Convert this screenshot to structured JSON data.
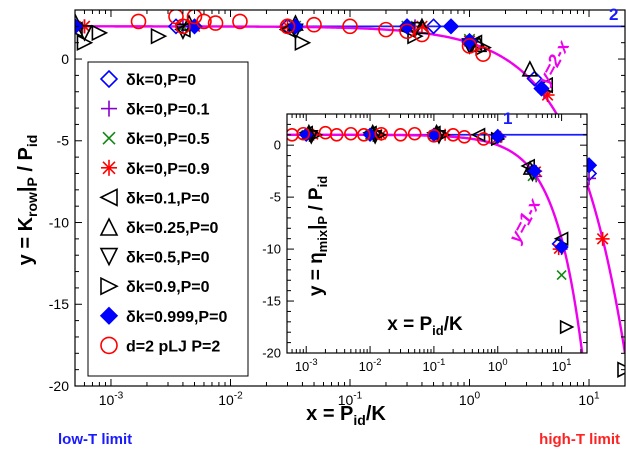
{
  "chart_data": [
    {
      "type": "scatter",
      "panel": "main",
      "xscale": "log",
      "xlim": [
        0.0005,
        20
      ],
      "ylim": [
        -20,
        3
      ],
      "grid": false,
      "legend_placement": "left",
      "xlabel": {
        "base": "x = P",
        "sub": "id",
        "tail": "/K"
      },
      "ylabel": {
        "base": "y = K",
        "sub1": "row",
        "mid": "|",
        "sub2": "P",
        "tail": " / P",
        "sub3": "id"
      },
      "xticks": [
        {
          "value": 0.001,
          "base": "10",
          "exp": "-3"
        },
        {
          "value": 0.01,
          "base": "10",
          "exp": "-2"
        },
        {
          "value": 0.1,
          "base": "10",
          "exp": "-1"
        },
        {
          "value": 1,
          "base": "10",
          "exp": "0"
        },
        {
          "value": 10,
          "base": "10",
          "exp": "1"
        }
      ],
      "yticks": [
        {
          "value": 0,
          "label": "0"
        },
        {
          "value": -5,
          "label": "-5"
        },
        {
          "value": -10,
          "label": "-10"
        },
        {
          "value": -15,
          "label": "-15"
        },
        {
          "value": -20,
          "label": "-20"
        }
      ],
      "reference_lines": [
        {
          "label": "2",
          "color": "#1a1aff",
          "kind": "const",
          "y": 2
        },
        {
          "label": "y=2-x",
          "color": "#ee00ee",
          "kind": "two_minus_x"
        }
      ],
      "corner_notes": [
        {
          "text": "low-T limit",
          "color": "#1a1aff",
          "side": "left"
        },
        {
          "text": "high-T limit",
          "color": "#ff2222",
          "side": "right"
        }
      ],
      "series": [
        {
          "name": "δk=0,P=0",
          "marker": "diamond-open",
          "color": "#0000ff",
          "points": [
            [
              0.0005,
              2
            ],
            [
              0.0035,
              2
            ],
            [
              0.03,
              2
            ],
            [
              0.3,
              2
            ],
            [
              0.5,
              2
            ],
            [
              1.0,
              1.0
            ],
            [
              3.5,
              -1.2
            ],
            [
              10,
              -7.0
            ]
          ]
        },
        {
          "name": "δk=0,P=0.1",
          "marker": "plus",
          "color": "#8800cc",
          "points": [
            [
              0.0006,
              2
            ],
            [
              0.004,
              2
            ],
            [
              0.035,
              2
            ],
            [
              0.35,
              2
            ],
            [
              1.0,
              1.0
            ],
            [
              4.2,
              -2.0
            ],
            [
              10,
              -7.3
            ]
          ]
        },
        {
          "name": "δk=0,P=0.5",
          "marker": "x",
          "color": "#118811",
          "points": [
            [
              0.0006,
              2
            ],
            [
              0.004,
              2
            ],
            [
              0.035,
              2
            ],
            [
              0.3,
              2
            ],
            [
              1.0,
              1.2
            ]
          ]
        },
        {
          "name": "δk=0,P=0.9",
          "marker": "asterisk",
          "color": "#ff0000",
          "points": [
            [
              0.0006,
              2
            ],
            [
              0.005,
              2
            ],
            [
              0.03,
              2
            ],
            [
              0.4,
              2
            ],
            [
              1.0,
              1.1
            ],
            [
              4.5,
              -2.2
            ],
            [
              13,
              -11.0
            ]
          ]
        },
        {
          "name": "δk=0.1,P=0",
          "marker": "tri-left",
          "color": "#000000",
          "points": [
            [
              0.0005,
              1.8
            ],
            [
              0.004,
              1.8
            ],
            [
              0.03,
              1.8
            ],
            [
              0.3,
              1.8
            ],
            [
              1.1,
              1.0
            ],
            [
              4.3,
              -1.6
            ]
          ]
        },
        {
          "name": "δk=0.25,P=0",
          "marker": "tri-up",
          "color": "#000000",
          "points": [
            [
              0.0005,
              2.3
            ],
            [
              0.0045,
              2.2
            ],
            [
              0.035,
              2.2
            ],
            [
              0.4,
              2.0
            ],
            [
              1.2,
              0.9
            ],
            [
              3.2,
              -0.6
            ]
          ]
        },
        {
          "name": "δk=0.5,P=0",
          "marker": "tri-down",
          "color": "#000000",
          "points": [
            [
              0.0006,
              1.6
            ],
            [
              0.004,
              1.7
            ],
            [
              0.035,
              1.7
            ],
            [
              0.35,
              1.8
            ],
            [
              1.0,
              0.8
            ]
          ]
        },
        {
          "name": "δk=0.9,P=0",
          "marker": "tri-right",
          "color": "#000000",
          "points": [
            [
              0.0006,
              1.0
            ],
            [
              0.0008,
              1.6
            ],
            [
              0.0025,
              1.4
            ],
            [
              0.04,
              1.0
            ],
            [
              0.35,
              1.4
            ],
            [
              1.3,
              0.7
            ],
            [
              6.5,
              -17.0
            ],
            [
              20,
              -19.0
            ]
          ]
        },
        {
          "name": "δk=0.999,P=0",
          "marker": "diamond-filled",
          "color": "#0000ff",
          "points": [
            [
              0.0005,
              2
            ],
            [
              0.005,
              2
            ],
            [
              0.035,
              2
            ],
            [
              0.3,
              2
            ],
            [
              0.7,
              2
            ],
            [
              1.0,
              1.1
            ],
            [
              4.0,
              -1.8
            ],
            [
              10,
              -6.5
            ]
          ]
        },
        {
          "name": "d=2 pLJ P=2",
          "marker": "circle-open",
          "color": "#ff0000",
          "points": [
            [
              0.0017,
              2.3
            ],
            [
              0.0035,
              2.6
            ],
            [
              0.004,
              2.0
            ],
            [
              0.005,
              2.6
            ],
            [
              0.006,
              2.3
            ],
            [
              0.0075,
              2.2
            ],
            [
              0.012,
              2.3
            ],
            [
              0.03,
              2.0
            ],
            [
              0.05,
              2.1
            ],
            [
              0.1,
              2.0
            ],
            [
              0.2,
              1.8
            ],
            [
              0.3,
              1.7
            ],
            [
              0.4,
              1.5
            ],
            [
              1.0,
              0.8
            ],
            [
              1.3,
              0.3
            ]
          ]
        }
      ]
    },
    {
      "type": "scatter",
      "panel": "inset",
      "xscale": "log",
      "xlim": [
        0.0005,
        25
      ],
      "ylim": [
        -20,
        3
      ],
      "grid": false,
      "xlabel": {
        "base": "x = P",
        "sub": "id",
        "tail": "/K"
      },
      "ylabel": {
        "base": "y = η",
        "sub1": "mix",
        "mid": "|",
        "sub2": "P",
        "tail": " / P",
        "sub3": "id"
      },
      "xticks": [
        {
          "value": 0.001,
          "base": "10",
          "exp": "-3"
        },
        {
          "value": 0.01,
          "base": "10",
          "exp": "-2"
        },
        {
          "value": 0.1,
          "base": "10",
          "exp": "-1"
        },
        {
          "value": 1,
          "base": "10",
          "exp": "0"
        },
        {
          "value": 10,
          "base": "10",
          "exp": "1"
        }
      ],
      "yticks": [
        {
          "value": 0,
          "label": "0"
        },
        {
          "value": -5,
          "label": "-5"
        },
        {
          "value": -10,
          "label": "-10"
        },
        {
          "value": -15,
          "label": "-15"
        },
        {
          "value": -20,
          "label": "-20"
        }
      ],
      "reference_lines": [
        {
          "label": "1",
          "color": "#1a1aff",
          "kind": "const",
          "y": 1
        },
        {
          "label": "y=1-x",
          "color": "#ee00ee",
          "kind": "one_minus_x"
        }
      ],
      "series": [
        {
          "name": "δk=0,P=0",
          "marker": "diamond-open",
          "color": "#0000ff",
          "points": [
            [
              0.001,
              1
            ],
            [
              0.01,
              1
            ],
            [
              0.1,
              1
            ],
            [
              1,
              0.9
            ],
            [
              3.5,
              -2.5
            ],
            [
              9,
              -9.5
            ]
          ]
        },
        {
          "name": "δk=0,P=0.1",
          "marker": "plus",
          "color": "#8800cc",
          "points": [
            [
              0.0012,
              1
            ],
            [
              0.012,
              1
            ],
            [
              0.12,
              1
            ],
            [
              1.1,
              0.8
            ],
            [
              4,
              -3
            ],
            [
              10,
              -10
            ]
          ]
        },
        {
          "name": "δk=0,P=0.5",
          "marker": "x",
          "color": "#118811",
          "points": [
            [
              0.001,
              1
            ],
            [
              0.01,
              1
            ],
            [
              0.1,
              1
            ],
            [
              3.5,
              -3
            ],
            [
              10,
              -12.5
            ]
          ]
        },
        {
          "name": "δk=0,P=0.9",
          "marker": "asterisk",
          "color": "#ff0000",
          "points": [
            [
              0.0013,
              1
            ],
            [
              0.015,
              1
            ],
            [
              0.15,
              1
            ],
            [
              1,
              0.7
            ],
            [
              4,
              -2.5
            ],
            [
              9,
              -10
            ]
          ]
        },
        {
          "name": "δk=0.1,P=0",
          "marker": "tri-left",
          "color": "#000000",
          "points": [
            [
              0.001,
              1.2
            ],
            [
              0.01,
              1.2
            ],
            [
              0.1,
              1.2
            ],
            [
              0.5,
              1
            ],
            [
              3,
              -2
            ],
            [
              10,
              -9
            ]
          ]
        },
        {
          "name": "δk=0.25,P=0",
          "marker": "tri-up",
          "color": "#000000",
          "points": [
            [
              0.0011,
              1.3
            ],
            [
              0.011,
              1.3
            ],
            [
              0.11,
              1.3
            ],
            [
              3.2,
              -2.2
            ]
          ]
        },
        {
          "name": "δk=0.5,P=0",
          "marker": "tri-down",
          "color": "#000000",
          "points": [
            [
              0.0012,
              0.8
            ],
            [
              0.012,
              0.8
            ],
            [
              0.12,
              0.8
            ],
            [
              3.5,
              -2.8
            ]
          ]
        },
        {
          "name": "δk=0.9,P=0",
          "marker": "tri-right",
          "color": "#000000",
          "points": [
            [
              0.0014,
              1
            ],
            [
              0.014,
              1
            ],
            [
              0.14,
              1
            ],
            [
              1,
              0.6
            ],
            [
              12,
              -17.5
            ]
          ]
        },
        {
          "name": "δk=0.999,P=0",
          "marker": "diamond-filled",
          "color": "#0000ff",
          "points": [
            [
              0.001,
              1
            ],
            [
              0.01,
              1
            ],
            [
              0.1,
              1
            ],
            [
              1,
              0.8
            ],
            [
              3.8,
              -2.5
            ],
            [
              10,
              -9.8
            ]
          ]
        },
        {
          "name": "d=2 pLJ P=2",
          "marker": "circle-open",
          "color": "#ff0000",
          "points": [
            [
              0.0006,
              1
            ],
            [
              0.0009,
              1.1
            ],
            [
              0.002,
              1.2
            ],
            [
              0.003,
              1.0
            ],
            [
              0.005,
              1.1
            ],
            [
              0.008,
              1.0
            ],
            [
              0.015,
              1.1
            ],
            [
              0.03,
              1.0
            ],
            [
              0.05,
              1.1
            ],
            [
              0.1,
              0.9
            ],
            [
              0.2,
              1.0
            ],
            [
              0.3,
              0.8
            ],
            [
              0.6,
              0.6
            ]
          ]
        }
      ]
    }
  ]
}
